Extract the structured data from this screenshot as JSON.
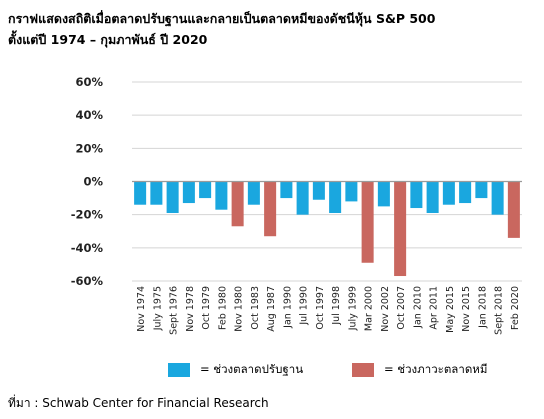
{
  "title_line1": "กราฟแสดงสถิติเมื่อตลาดปรับฐานและกลายเป็นตลาดหมีของดัชนีหุ้น S&P 500",
  "title_line2": "ตั้งแต่ปี 1974 – กุมภาพันธ์ ปี 2020",
  "source": "ที่มา : Schwab Center for Financial Research",
  "colors": {
    "correction": "#1aa7df",
    "bear": "#c9675f",
    "grid": "#d4d4d4",
    "zero_line": "#9a9a9a"
  },
  "chart_data": {
    "type": "bar",
    "title": "",
    "xlabel": "",
    "ylabel": "",
    "ylim": [
      -60,
      60
    ],
    "yticks": [
      60,
      40,
      20,
      0,
      -20,
      -40,
      -60
    ],
    "ytick_format": "percent",
    "grid": true,
    "legend_position": "bottom",
    "categories": [
      "Nov 1974",
      "July 1975",
      "Sept 1976",
      "Nov 1978",
      "Oct 1979",
      "Feb 1980",
      "Nov 1980",
      "Oct 1983",
      "Aug 1987",
      "Jan 1990",
      "Jul 1990",
      "Oct 1997",
      "Jul 1998",
      "July 1999",
      "Mar 2000",
      "Nov 2002",
      "Oct 2007",
      "Jan 2010",
      "Apr 2011",
      "May 2015",
      "Nov 2015",
      "Jan 2018",
      "Sept 2018",
      "Feb 2020"
    ],
    "values": [
      -14,
      -14,
      -19,
      -13,
      -10,
      -17,
      -27,
      -14,
      -33,
      -10,
      -20,
      -11,
      -19,
      -12,
      -49,
      -15,
      -57,
      -16,
      -19,
      -14,
      -13,
      -10,
      -20,
      -34
    ],
    "types": [
      "correction",
      "correction",
      "correction",
      "correction",
      "correction",
      "correction",
      "bear",
      "correction",
      "bear",
      "correction",
      "correction",
      "correction",
      "correction",
      "correction",
      "bear",
      "correction",
      "bear",
      "correction",
      "correction",
      "correction",
      "correction",
      "correction",
      "correction",
      "bear"
    ],
    "legend": [
      {
        "key": "correction",
        "label": "= ช่วงตลาดปรับฐาน"
      },
      {
        "key": "bear",
        "label": "= ช่วงภาวะตลาดหมี"
      }
    ]
  }
}
